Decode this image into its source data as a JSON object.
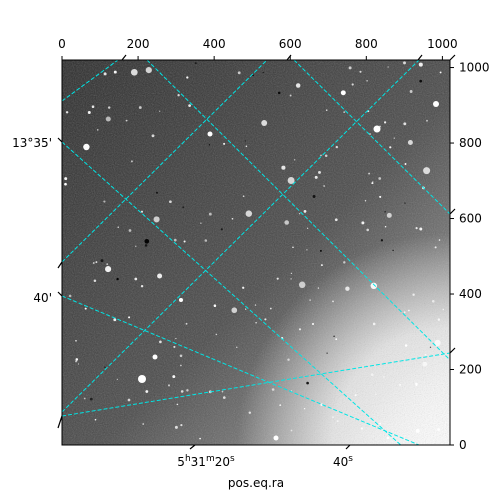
{
  "chart_data": {
    "type": "image",
    "title": "",
    "xlabel": "pos.eq.ra",
    "ylabel": "",
    "pixel_axes": {
      "x_range": [
        0,
        1020
      ],
      "y_range": [
        0,
        1020
      ],
      "x_ticks": [
        0,
        200,
        400,
        600,
        800,
        1000
      ],
      "y_ticks": [
        0,
        200,
        400,
        600,
        800,
        1000
      ],
      "x_tick_labels": [
        "0",
        "200",
        "400",
        "600",
        "800",
        "1000"
      ],
      "y_tick_labels": [
        "0",
        "200",
        "400",
        "600",
        "800",
        "1000"
      ]
    },
    "world_axes": {
      "ra_tick_labels": [
        {
          "base": "5",
          "h": "h",
          "min": "31",
          "m": "m",
          "sec": "20",
          "s": "s"
        },
        {
          "base": "40",
          "s": "s"
        }
      ],
      "dec_tick_labels": [
        "13°35'",
        "40'"
      ]
    },
    "grid": true,
    "grid_color": "#00e5e5",
    "colormap": "gray",
    "image_style": "noisy star field, darker upper-left, saturated white lower-right corner"
  }
}
